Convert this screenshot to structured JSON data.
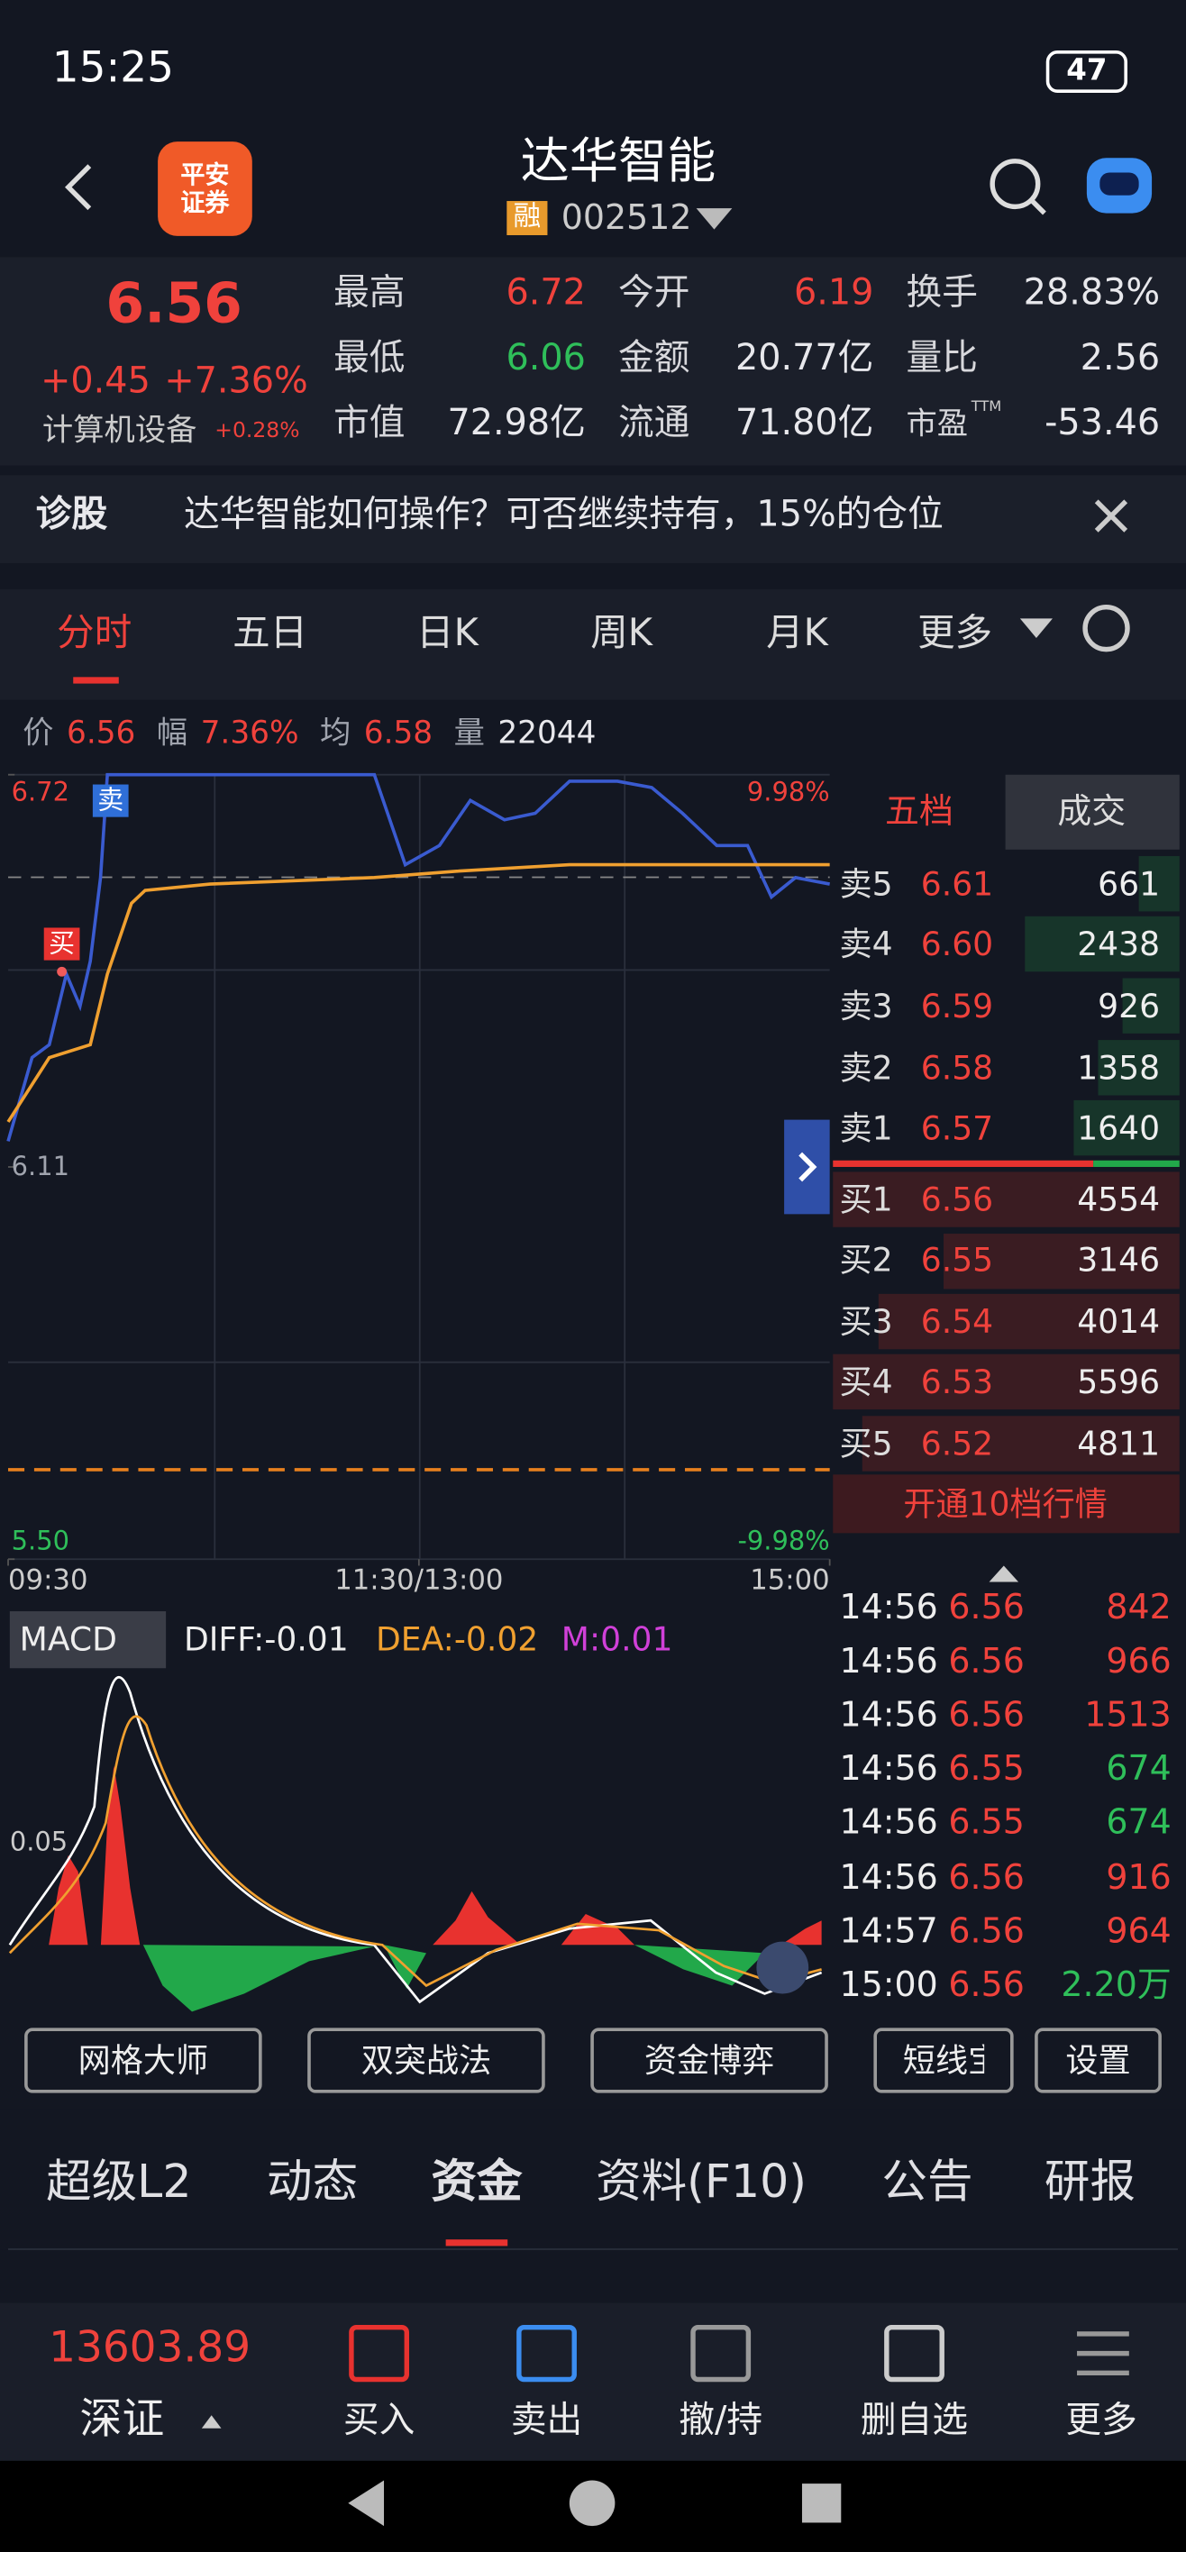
{
  "status": {
    "time": "15:25",
    "battery": "47"
  },
  "header": {
    "logo": "平安证券",
    "title": "达华智能",
    "badge": "融",
    "code": "002512"
  },
  "quote": {
    "price": "6.56",
    "change": "+0.45",
    "change_pct": "+7.36%",
    "sector": "计算机设备",
    "sector_pct": "+0.28%",
    "stats": [
      {
        "label": "最高",
        "value": "6.72",
        "tone": "up"
      },
      {
        "label": "今开",
        "value": "6.19",
        "tone": "up"
      },
      {
        "label": "换手",
        "value": "28.83%",
        "tone": "flat"
      },
      {
        "label": "最低",
        "value": "6.06",
        "tone": "down"
      },
      {
        "label": "金额",
        "value": "20.77亿",
        "tone": "flat"
      },
      {
        "label": "量比",
        "value": "2.56",
        "tone": "flat"
      },
      {
        "label": "市值",
        "value": "72.98亿",
        "tone": "flat"
      },
      {
        "label": "流通",
        "value": "71.80亿",
        "tone": "flat"
      },
      {
        "label": "市盈",
        "sup": "TTM",
        "value": "-53.46",
        "tone": "flat"
      }
    ]
  },
  "banner": {
    "label": "诊股",
    "text": "达华智能如何操作？可否继续持有，15%的仓位"
  },
  "tabs": [
    "分时",
    "五日",
    "日K",
    "周K",
    "月K",
    "更多"
  ],
  "info": [
    {
      "label": "价",
      "value": "6.56",
      "tone": "up"
    },
    {
      "label": "幅",
      "value": "7.36%",
      "tone": "up"
    },
    {
      "label": "均",
      "value": "6.58",
      "tone": "up"
    },
    {
      "label": "量",
      "value": "22044",
      "tone": "flat"
    }
  ],
  "chart_data": {
    "type": "line",
    "ylim": [
      5.5,
      6.72
    ],
    "yticks": [
      6.72,
      6.11,
      {
        "value": 5.5,
        "label": "5.50"
      }
    ],
    "xlim": [
      0,
      240
    ],
    "xticks": [
      {
        "value": 0,
        "label": "09:30"
      },
      {
        "value": 120,
        "label": "11:30/13:00"
      },
      {
        "value": 240,
        "label": "15:00"
      }
    ],
    "pct_labels": [
      "9.98%",
      "-9.98%"
    ],
    "markers": [
      "卖",
      "买"
    ],
    "series": [
      {
        "color": "#3a5bd0",
        "x": [
          0,
          7,
          12,
          17,
          21,
          24,
          27,
          29,
          107,
          116,
          126,
          135,
          145,
          154,
          164,
          178,
          188,
          197,
          207,
          216,
          223,
          230,
          240
        ],
        "values": [
          6.15,
          6.28,
          6.3,
          6.41,
          6.36,
          6.43,
          6.56,
          6.72,
          6.72,
          6.58,
          6.61,
          6.68,
          6.65,
          6.66,
          6.71,
          6.71,
          6.7,
          6.66,
          6.61,
          6.61,
          6.53,
          6.56,
          6.55
        ]
      },
      {
        "color": "#f0a030",
        "x": [
          0,
          12,
          24,
          29,
          36,
          40,
          59,
          107,
          131,
          164,
          240
        ],
        "values": [
          6.18,
          6.28,
          6.3,
          6.41,
          6.52,
          6.54,
          6.55,
          6.56,
          6.57,
          6.58,
          6.58
        ]
      }
    ]
  },
  "order_book": {
    "title": "五档",
    "tab": "成交",
    "upgrade": "开通10档行情",
    "asks": [
      {
        "label": "卖5",
        "price": "6.61",
        "volume": "661"
      },
      {
        "label": "卖4",
        "price": "6.60",
        "volume": "2438"
      },
      {
        "label": "卖3",
        "price": "6.59",
        "volume": "926"
      },
      {
        "label": "卖2",
        "price": "6.58",
        "volume": "1358"
      },
      {
        "label": "卖1",
        "price": "6.57",
        "volume": "1640"
      }
    ],
    "bids": [
      {
        "label": "买1",
        "price": "6.56",
        "volume": "4554"
      },
      {
        "label": "买2",
        "price": "6.55",
        "volume": "3146"
      },
      {
        "label": "买3",
        "price": "6.54",
        "volume": "4014"
      },
      {
        "label": "买4",
        "price": "6.53",
        "volume": "5596"
      },
      {
        "label": "买5",
        "price": "6.52",
        "volume": "4811"
      }
    ]
  },
  "trades": [
    {
      "time": "14:56",
      "price": "6.56",
      "volume": "842",
      "side": "buy"
    },
    {
      "time": "14:56",
      "price": "6.56",
      "volume": "966",
      "side": "buy"
    },
    {
      "time": "14:56",
      "price": "6.56",
      "volume": "1513",
      "side": "buy"
    },
    {
      "time": "14:56",
      "price": "6.55",
      "volume": "674",
      "side": "sell"
    },
    {
      "time": "14:56",
      "price": "6.55",
      "volume": "674",
      "side": "sell"
    },
    {
      "time": "14:56",
      "price": "6.56",
      "volume": "916",
      "side": "buy"
    },
    {
      "time": "14:57",
      "price": "6.56",
      "volume": "964",
      "side": "buy"
    },
    {
      "time": "15:00",
      "price": "6.56",
      "volume": "2.20万",
      "side": "sell"
    }
  ],
  "macd": {
    "label": "MACD",
    "diff": "DIFF:-0.01",
    "dea": "DEA:-0.02",
    "m": "M:0.01",
    "tick": "0.05"
  },
  "tools": [
    "网格大师",
    "双突战法",
    "资金博弈",
    "短线宝",
    "设置"
  ],
  "sections": [
    "超级L2",
    "动态",
    "资金",
    "资料(F10)",
    "公告",
    "研报"
  ],
  "bottom": {
    "index_value": "13603.89",
    "index_name": "深证",
    "actions": [
      "买入",
      "卖出",
      "撤/持",
      "删自选",
      "更多"
    ]
  }
}
